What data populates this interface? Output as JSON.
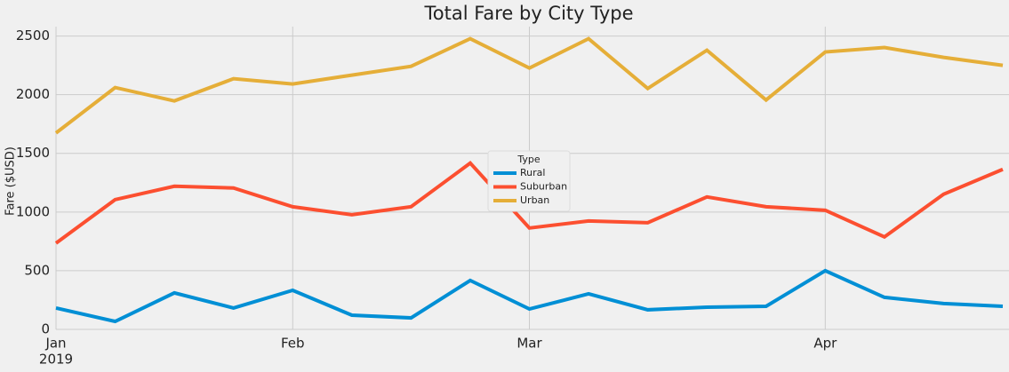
{
  "chart_data": {
    "type": "line",
    "title": "Total Fare by City Type",
    "y_label": "Fare ($USD)",
    "categories": [
      "Jan",
      null,
      null,
      null,
      "Feb",
      null,
      null,
      null,
      "Mar",
      null,
      null,
      null,
      null,
      "Apr",
      null,
      null,
      null
    ],
    "x_year_label": "2019",
    "series": [
      {
        "name": "Rural",
        "color": "#008fd5",
        "values": [
          182,
          68,
          311,
          182,
          333,
          121,
          98,
          417,
          174,
          303,
          167,
          189,
          197,
          500,
          273,
          220,
          197
        ]
      },
      {
        "name": "Suburban",
        "color": "#fc4f30",
        "values": [
          735,
          1106,
          1220,
          1205,
          1045,
          977,
          1045,
          1417,
          864,
          924,
          909,
          1129,
          1045,
          1015,
          788,
          1152,
          1364
        ]
      },
      {
        "name": "Urban",
        "color": "#e5ae38",
        "values": [
          1674,
          2061,
          1947,
          2136,
          2091,
          2167,
          2242,
          2477,
          2227,
          2477,
          2053,
          2379,
          1955,
          2364,
          2402,
          2318,
          2250
        ]
      }
    ],
    "legend_title": "Type",
    "legend": "center",
    "ylim": [
      0,
      2580
    ],
    "yticks": [
      0,
      500,
      1000,
      1500,
      2000,
      2500
    ],
    "grid": true
  }
}
